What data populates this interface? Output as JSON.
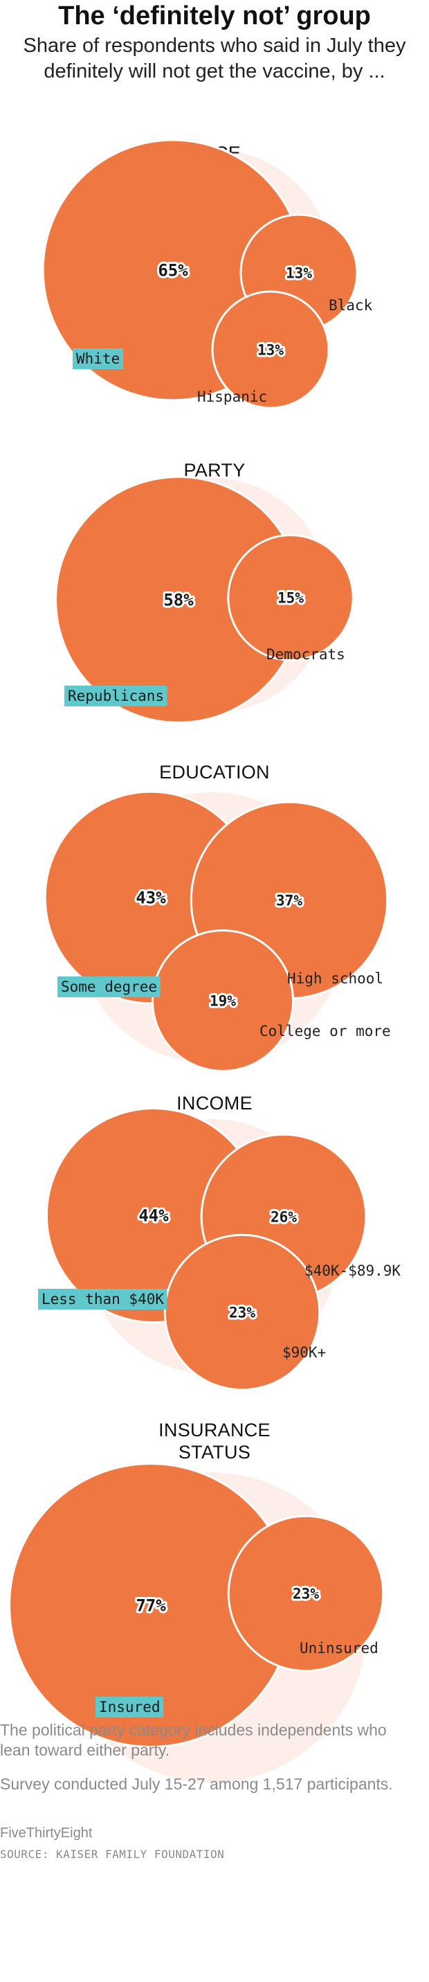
{
  "title": "The ‘definitely not’ group",
  "subtitle": "Share of respondents who said in July they definitely will not get the vaccine, by ...",
  "colors": {
    "bubble": "#ef7742",
    "background_circle": "#fdeee9",
    "highlight": "#5ec8cc"
  },
  "chart_data": [
    {
      "type": "bubble",
      "title": "RACE",
      "categories": [
        "White",
        "Black",
        "Hispanic"
      ],
      "values": [
        65,
        13,
        13
      ],
      "labels": [
        "65%",
        "13%",
        "13%"
      ],
      "highlighted": "White"
    },
    {
      "type": "bubble",
      "title": "PARTY",
      "categories": [
        "Republicans",
        "Democrats"
      ],
      "values": [
        58,
        15
      ],
      "labels": [
        "58%",
        "15%"
      ],
      "highlighted": "Republicans"
    },
    {
      "type": "bubble",
      "title": "EDUCATION",
      "categories": [
        "Some degree",
        "High school",
        "College or more"
      ],
      "values": [
        43,
        37,
        19
      ],
      "labels": [
        "43%",
        "37%",
        "19%"
      ],
      "highlighted": "Some degree"
    },
    {
      "type": "bubble",
      "title": "INCOME",
      "categories": [
        "Less than $40K",
        "$40K-$89.9K",
        "$90K+"
      ],
      "values": [
        44,
        26,
        23
      ],
      "labels": [
        "44%",
        "26%",
        "23%"
      ],
      "highlighted": "Less than $40K"
    },
    {
      "type": "bubble",
      "title": "INSURANCE STATUS",
      "title_lines": [
        "INSURANCE",
        "STATUS"
      ],
      "categories": [
        "Insured",
        "Uninsured"
      ],
      "values": [
        77,
        23
      ],
      "labels": [
        "77%",
        "23%"
      ],
      "highlighted": "Insured"
    }
  ],
  "footnote": "The political party category includes independents who lean toward either party.",
  "survey_note": "Survey conducted July 15-27 among 1,517 participants.",
  "credit": "FiveThirtyEight",
  "source": "SOURCE: KAISER FAMILY FOUNDATION"
}
